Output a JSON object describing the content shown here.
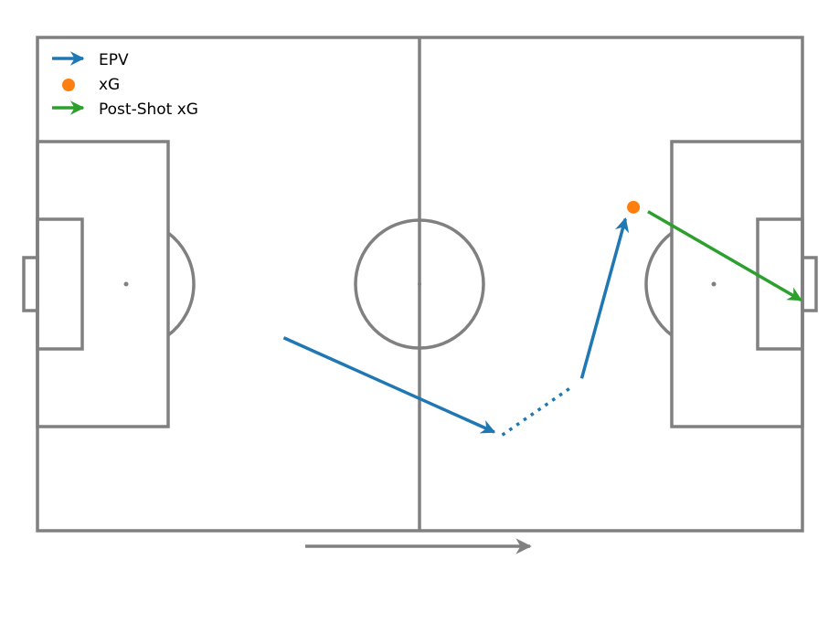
{
  "chart_data": {
    "type": "pitch-diagram",
    "pitch": {
      "length": 105,
      "width": 68,
      "line_color": "#808080"
    },
    "direction_of_play": "left-to-right",
    "legend": {
      "placement": "top-left",
      "items": [
        {
          "label": "EPV",
          "marker": "arrow",
          "color": "#1f77b4"
        },
        {
          "label": "xG",
          "marker": "circle",
          "color": "#ff7f0e"
        },
        {
          "label": "Post-Shot xG",
          "marker": "arrow",
          "color": "#2ca02c"
        }
      ]
    },
    "events": [
      {
        "series": "EPV",
        "kind": "pass",
        "style": "solid",
        "arrow": true,
        "start": [
          33.8,
          26.6
        ],
        "end": [
          62.7,
          13.6
        ]
      },
      {
        "series": "EPV",
        "kind": "carry",
        "style": "dotted",
        "arrow": false,
        "start": [
          63.8,
          13.2
        ],
        "end": [
          73.6,
          20.0
        ]
      },
      {
        "series": "EPV",
        "kind": "pass",
        "style": "solid",
        "arrow": true,
        "start": [
          74.7,
          21.0
        ],
        "end": [
          80.7,
          43.0
        ]
      },
      {
        "series": "xG",
        "kind": "shot-origin",
        "position": [
          81.8,
          44.6
        ]
      },
      {
        "series": "Post-Shot xG",
        "kind": "shot",
        "style": "solid",
        "arrow": true,
        "start": [
          83.8,
          44.0
        ],
        "end": [
          104.8,
          31.8
        ]
      }
    ]
  }
}
